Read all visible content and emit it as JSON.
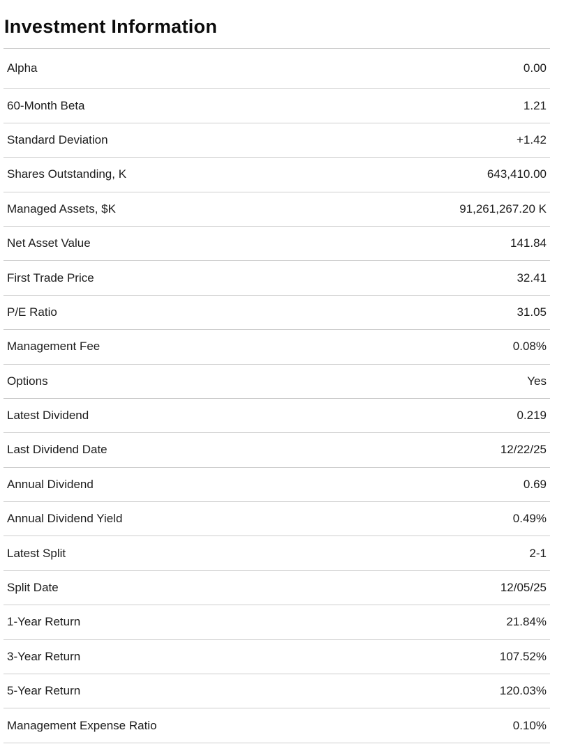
{
  "header": {
    "title": "Investment Information"
  },
  "table": {
    "rows": [
      {
        "label": "Alpha",
        "value": "0.00"
      },
      {
        "label": "60-Month Beta",
        "value": "1.21"
      },
      {
        "label": "Standard Deviation",
        "value": "+1.42"
      },
      {
        "label": "Shares Outstanding, K",
        "value": "643,410.00"
      },
      {
        "label": "Managed Assets, $K",
        "value": "91,261,267.20 K"
      },
      {
        "label": "Net Asset Value",
        "value": "141.84"
      },
      {
        "label": "First Trade Price",
        "value": "32.41"
      },
      {
        "label": "P/E Ratio",
        "value": "31.05"
      },
      {
        "label": "Management Fee",
        "value": "0.08%"
      },
      {
        "label": "Options",
        "value": "Yes"
      },
      {
        "label": "Latest Dividend",
        "value": "0.219"
      },
      {
        "label": "Last Dividend Date",
        "value": "12/22/25"
      },
      {
        "label": "Annual Dividend",
        "value": "0.69"
      },
      {
        "label": "Annual Dividend Yield",
        "value": "0.49%"
      },
      {
        "label": "Latest Split",
        "value": "2-1"
      },
      {
        "label": "Split Date",
        "value": "12/05/25"
      },
      {
        "label": "1-Year Return",
        "value": "21.84%"
      },
      {
        "label": "3-Year Return",
        "value": "107.52%"
      },
      {
        "label": "5-Year Return",
        "value": "120.03%"
      },
      {
        "label": "Management Expense Ratio",
        "value": "0.10%"
      }
    ]
  },
  "colors": {
    "background": "#ffffff",
    "title_text": "#0d0d0d",
    "body_text": "#1c1c1c",
    "divider": "#cdcdcd"
  }
}
